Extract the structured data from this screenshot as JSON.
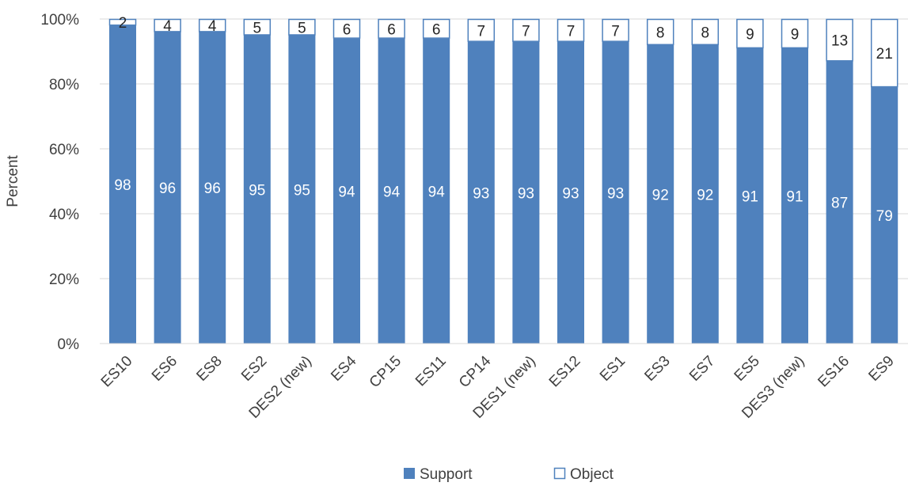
{
  "chart_data": {
    "type": "bar",
    "stacked": true,
    "title": "",
    "xlabel": "",
    "ylabel": "Percent",
    "ylim": [
      0,
      100
    ],
    "yticks": [
      "0%",
      "20%",
      "40%",
      "60%",
      "80%",
      "100%"
    ],
    "ytick_values": [
      0,
      20,
      40,
      60,
      80,
      100
    ],
    "grid": true,
    "legend_position": "bottom",
    "categories": [
      "ES10",
      "ES6",
      "ES8",
      "ES2",
      "DES2 (new)",
      "ES4",
      "CP15",
      "ES11",
      "CP14",
      "DES1 (new)",
      "ES12",
      "ES1",
      "ES3",
      "ES7",
      "ES5",
      "DES3 (new)",
      "ES16",
      "ES9"
    ],
    "series": [
      {
        "name": "Support",
        "color": "#4f81bd",
        "values": [
          98,
          96,
          96,
          95,
          95,
          94,
          94,
          94,
          93,
          93,
          93,
          93,
          92,
          92,
          91,
          91,
          87,
          79
        ]
      },
      {
        "name": "Object",
        "color": "#ffffff",
        "values": [
          2,
          4,
          4,
          5,
          5,
          6,
          6,
          6,
          7,
          7,
          7,
          7,
          8,
          8,
          9,
          9,
          13,
          21
        ]
      }
    ]
  }
}
